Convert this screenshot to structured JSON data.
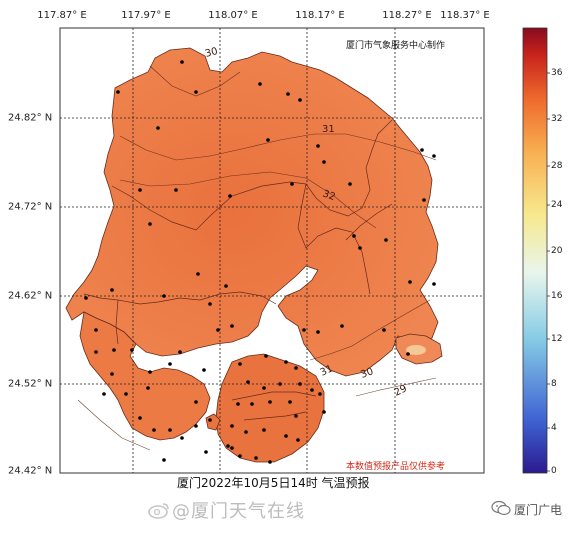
{
  "map": {
    "producer": "厦门市气象服务中心制作",
    "title": "厦门2022年10月5日14时  气温预报",
    "disclaimer": "本数值预报产品仅供参考",
    "longitude_labels": [
      "117.87° E",
      "117.97° E",
      "118.07° E",
      "118.17° E",
      "118.27° E",
      "118.37° E"
    ],
    "latitude_labels": [
      "24.82° N",
      "24.72° N",
      "24.62° N",
      "24.52° N",
      "24.42° N"
    ],
    "isotherm_labels": [
      "30",
      "31",
      "32",
      "31",
      "30",
      "29"
    ]
  },
  "colorbar": {
    "ticks": [
      "36",
      "32",
      "28",
      "24",
      "20",
      "16",
      "12",
      "8",
      "4",
      "0"
    ],
    "min": 0,
    "max": 38,
    "colors": [
      "#3b1e9c",
      "#3e6fd8",
      "#7fc6e6",
      "#e6f4ee",
      "#f6ec9a",
      "#f9b85a",
      "#ef6f2e",
      "#c8241c",
      "#8c0c1e"
    ]
  },
  "watermark": {
    "weibo": "@厦门天气在线",
    "wechat": "厦门广电"
  },
  "colors": {
    "land": "#ec7c45",
    "land_dark": "#e06838",
    "boundary": "#7a2a18",
    "sea": "#ffffff",
    "station": "#000000"
  }
}
